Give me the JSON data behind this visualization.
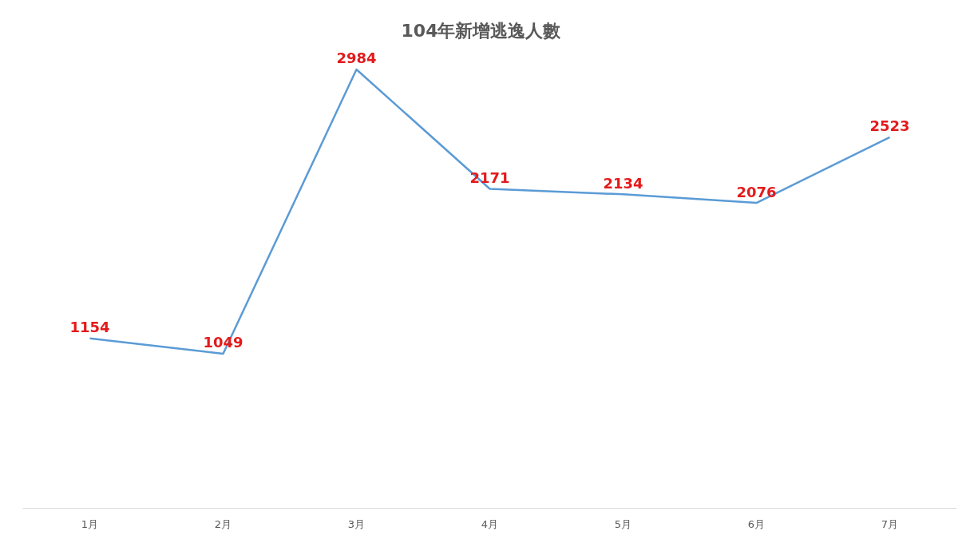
{
  "chart_data": {
    "type": "line",
    "title": "104年新增逃逸人數",
    "categories": [
      "1月",
      "2月",
      "3月",
      "4月",
      "5月",
      "6月",
      "7月"
    ],
    "series": [
      {
        "color": "#5b9bd5",
        "values": [
          1154,
          1049,
          2984,
          2171,
          2134,
          2076,
          2523
        ]
      }
    ],
    "data_labels": true,
    "marker": "none"
  }
}
